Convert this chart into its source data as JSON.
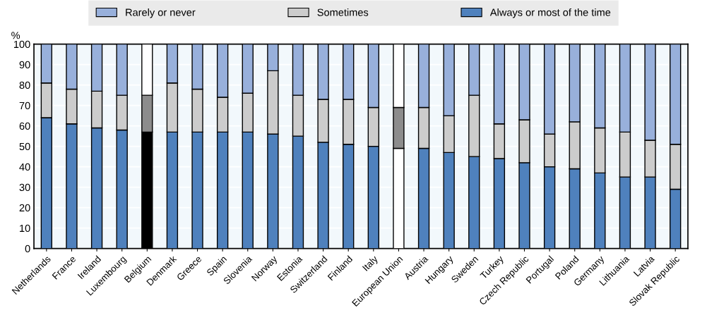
{
  "chart_data": {
    "type": "bar",
    "stacked": true,
    "ylabel": "%",
    "categories": [
      "Netherlands",
      "France",
      "Ireland",
      "Luxembourg",
      "Belgium",
      "Denmark",
      "Greece",
      "Spain",
      "Slovenia",
      "Norway",
      "Estonia",
      "Switzerland",
      "Finland",
      "Italy",
      "European Union",
      "Austria",
      "Hungary",
      "Sweden",
      "Turkey",
      "Czech Republic",
      "Portugal",
      "Poland",
      "Germany",
      "Lithuania",
      "Latvia",
      "Slovak Republic"
    ],
    "series": [
      {
        "name": "Always or most of the time",
        "color": "#4f81bd",
        "colors": [
          "#4f81bd",
          "#4f81bd",
          "#4f81bd",
          "#4f81bd",
          "#000000",
          "#4f81bd",
          "#4f81bd",
          "#4f81bd",
          "#4f81bd",
          "#4f81bd",
          "#4f81bd",
          "#4f81bd",
          "#4f81bd",
          "#4f81bd",
          "#ffffff",
          "#4f81bd",
          "#4f81bd",
          "#4f81bd",
          "#4f81bd",
          "#4f81bd",
          "#4f81bd",
          "#4f81bd",
          "#4f81bd",
          "#4f81bd",
          "#4f81bd",
          "#4f81bd"
        ],
        "values": [
          64,
          61,
          59,
          58,
          57,
          57,
          57,
          57,
          57,
          56,
          55,
          52,
          51,
          50,
          49,
          49,
          47,
          45,
          44,
          42,
          40,
          39,
          37,
          35,
          35,
          29
        ]
      },
      {
        "name": "Sometimes",
        "color": "#cccccc",
        "colors": [
          "#cccccc",
          "#cccccc",
          "#cccccc",
          "#cccccc",
          "#8c8c8c",
          "#cccccc",
          "#cccccc",
          "#cccccc",
          "#cccccc",
          "#cccccc",
          "#cccccc",
          "#cccccc",
          "#cccccc",
          "#cccccc",
          "#8c8c8c",
          "#cccccc",
          "#cccccc",
          "#cccccc",
          "#cccccc",
          "#cccccc",
          "#cccccc",
          "#cccccc",
          "#cccccc",
          "#cccccc",
          "#cccccc",
          "#cccccc"
        ],
        "values": [
          17,
          17,
          18,
          17,
          18,
          24,
          21,
          17,
          19,
          31,
          20,
          21,
          22,
          19,
          20,
          20,
          18,
          30,
          17,
          21,
          16,
          23,
          22,
          22,
          18,
          22
        ]
      },
      {
        "name": "Rarely or never",
        "color": "#98b0db",
        "colors": [
          "#98b0db",
          "#98b0db",
          "#98b0db",
          "#98b0db",
          "#ffffff",
          "#98b0db",
          "#98b0db",
          "#98b0db",
          "#98b0db",
          "#98b0db",
          "#98b0db",
          "#98b0db",
          "#98b0db",
          "#98b0db",
          "#ffffff",
          "#98b0db",
          "#98b0db",
          "#98b0db",
          "#98b0db",
          "#98b0db",
          "#98b0db",
          "#98b0db",
          "#98b0db",
          "#98b0db",
          "#98b0db",
          "#98b0db"
        ],
        "values": [
          19,
          22,
          23,
          25,
          25,
          19,
          22,
          26,
          24,
          13,
          25,
          27,
          27,
          31,
          31,
          31,
          35,
          25,
          39,
          37,
          44,
          38,
          41,
          43,
          47,
          49
        ]
      }
    ],
    "ylim": [
      0,
      100
    ],
    "yticks": [
      0,
      10,
      20,
      30,
      40,
      50,
      60,
      70,
      80,
      90,
      100
    ],
    "grid": "y",
    "legend": "top"
  }
}
